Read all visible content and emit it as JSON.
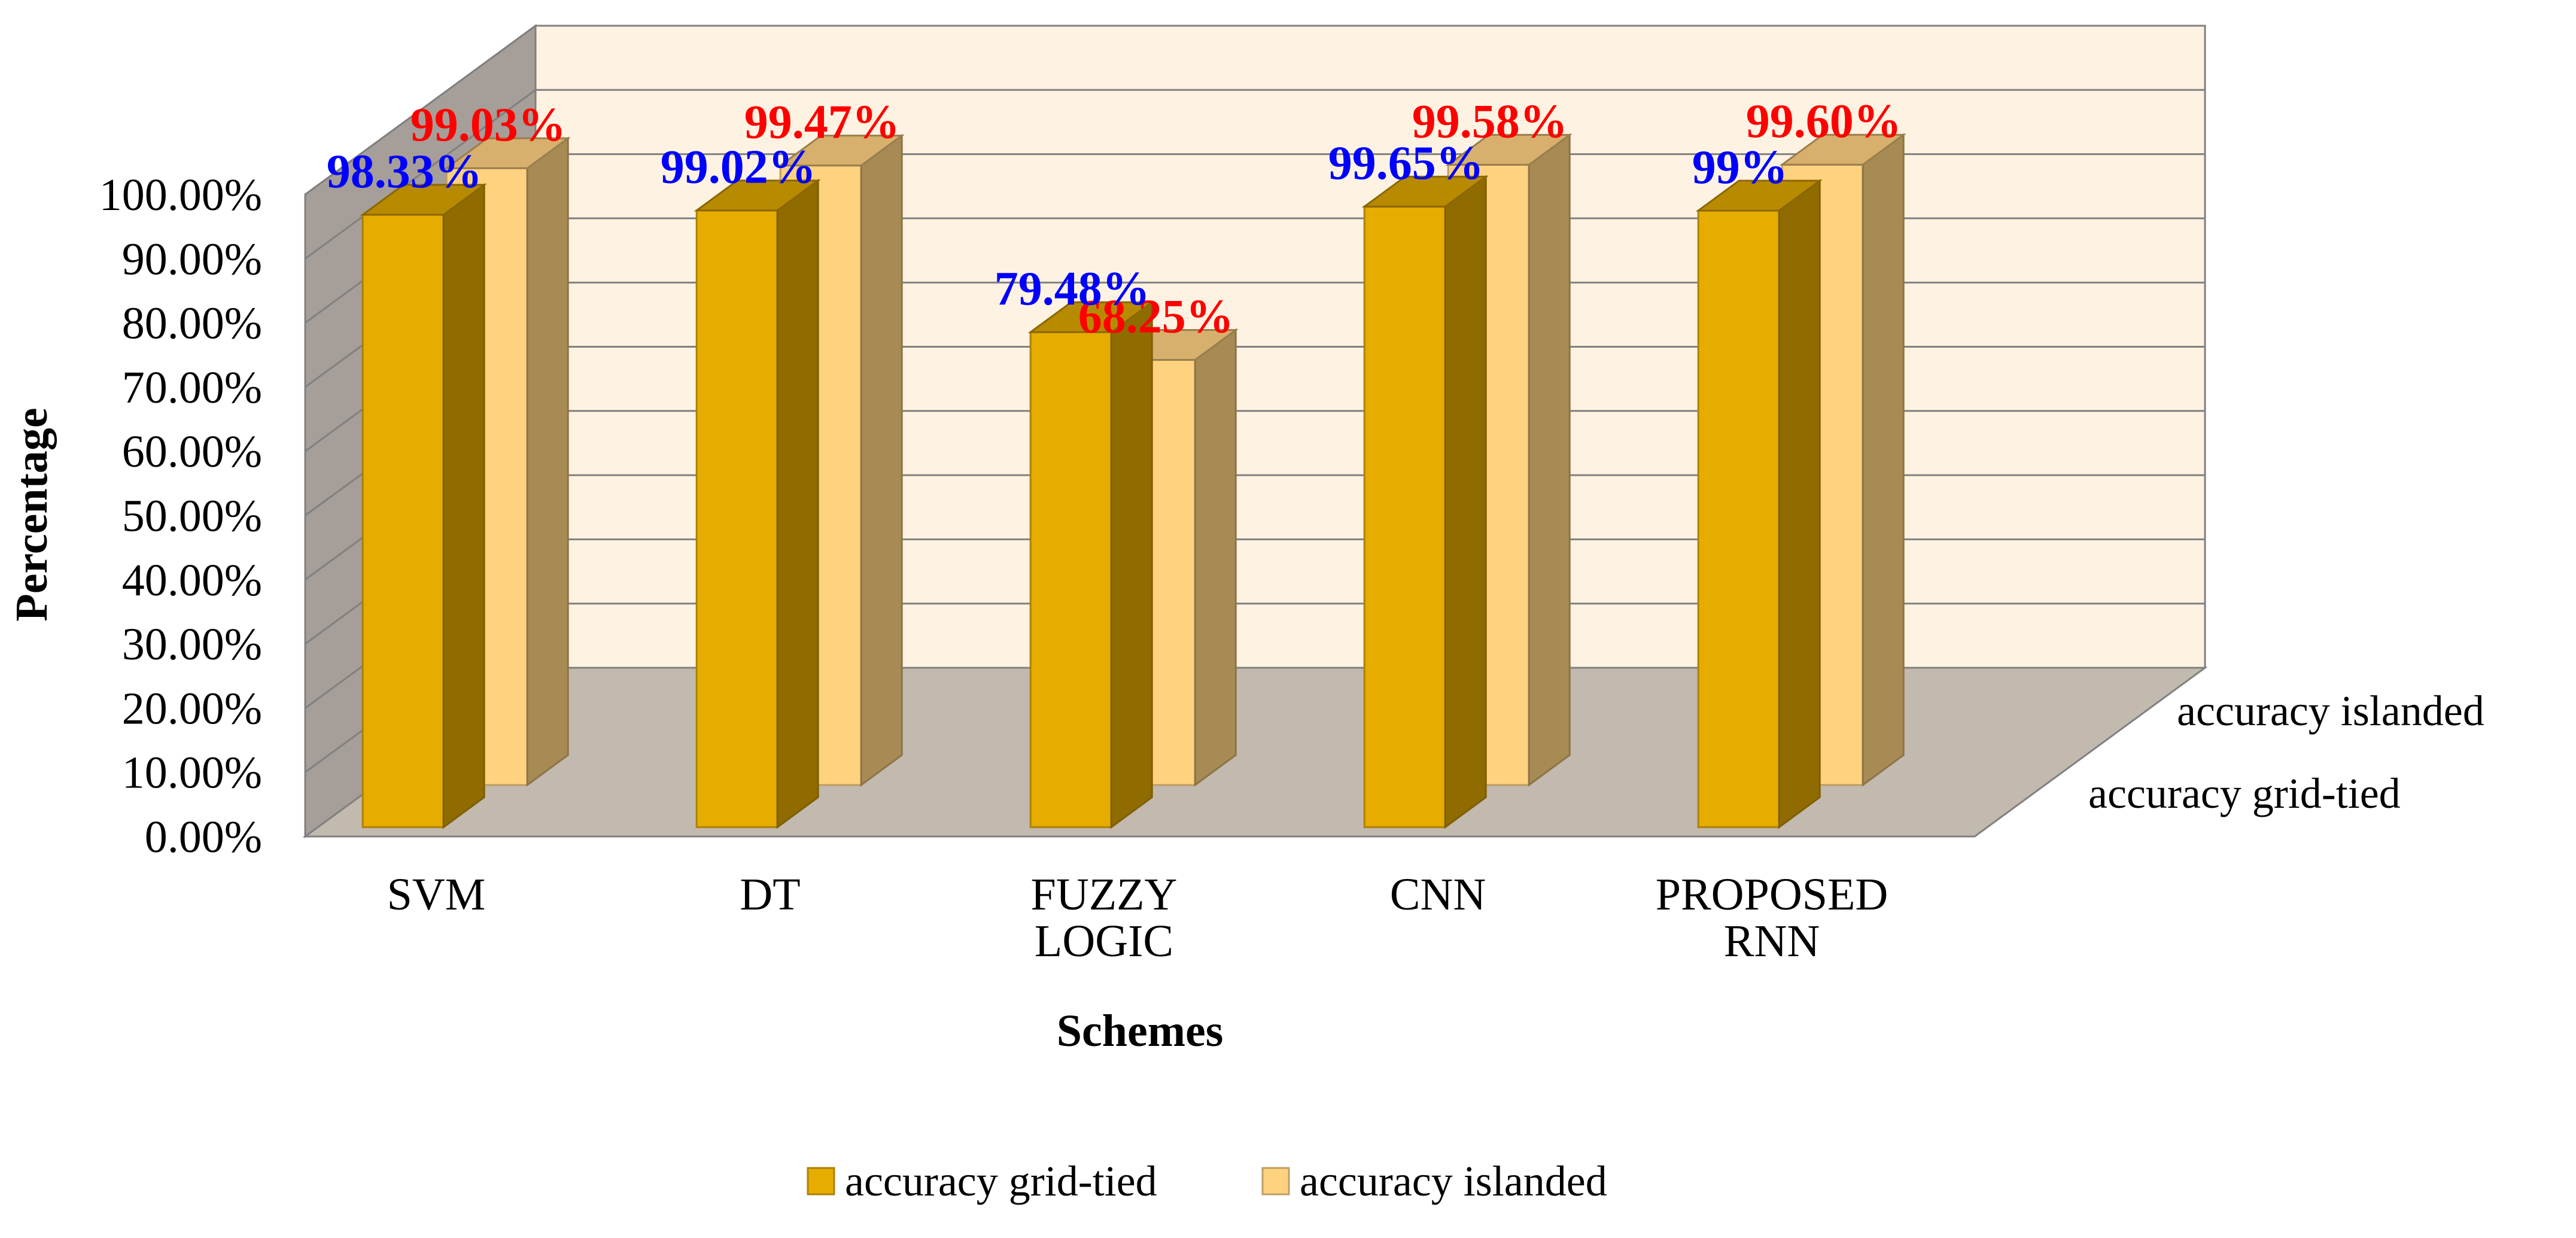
{
  "chart_data": {
    "type": "bar",
    "style": "3d-clustered-column",
    "categories": [
      [
        "SVM"
      ],
      [
        "DT"
      ],
      [
        "FUZZY",
        "LOGIC"
      ],
      [
        "CNN"
      ],
      [
        "PROPOSED",
        "RNN"
      ]
    ],
    "series": [
      {
        "name": "accuracy grid-tied",
        "values": [
          98.33,
          99.02,
          79.48,
          99.65,
          99.0
        ],
        "labels": [
          "98.33%",
          "99.02%",
          "79.48%",
          "99.65%",
          "99%"
        ],
        "color": "#E6AC00",
        "label_color": "#0000FF"
      },
      {
        "name": "accuracy islanded",
        "values": [
          99.03,
          99.47,
          68.25,
          99.58,
          99.6
        ],
        "labels": [
          "99.03%",
          "99.47%",
          "68.25%",
          "99.58%",
          "99.60%"
        ],
        "color": "#FFD280",
        "label_color": "#FF0000"
      }
    ],
    "ylim": [
      0,
      100
    ],
    "yticks": [
      "0.00%",
      "10.00%",
      "20.00%",
      "30.00%",
      "40.00%",
      "50.00%",
      "60.00%",
      "70.00%",
      "80.00%",
      "90.00%",
      "100.00%"
    ],
    "xlabel": "Schemes",
    "ylabel": "Percentage",
    "grid": true,
    "legend_position": "bottom",
    "colors": {
      "back_wall": "#FEF3E2",
      "side_wall": "#A69E98",
      "floor": "#C2B9AF",
      "gridline": "#808080"
    }
  }
}
